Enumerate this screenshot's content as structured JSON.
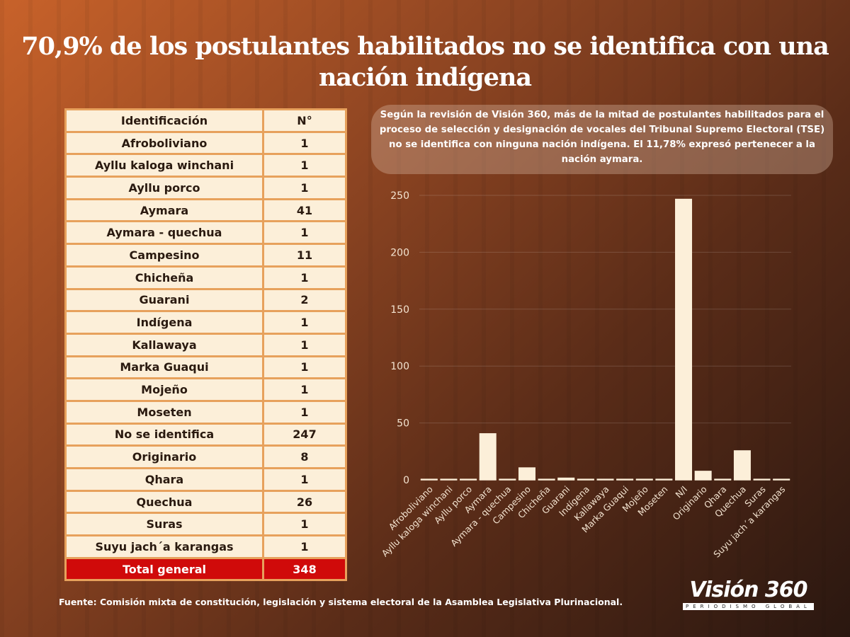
{
  "title": "70,9% de los postulantes habilitados no se identifica con una nación indígena",
  "table": {
    "headers": [
      "Identificación",
      "N°"
    ],
    "rows": [
      [
        "Afroboliviano",
        "1"
      ],
      [
        "Ayllu kaloga winchani",
        "1"
      ],
      [
        "Ayllu porco",
        "1"
      ],
      [
        "Aymara",
        "41"
      ],
      [
        "Aymara - quechua",
        "1"
      ],
      [
        "Campesino",
        "11"
      ],
      [
        "Chicheña",
        "1"
      ],
      [
        "Guarani",
        "2"
      ],
      [
        "Indígena",
        "1"
      ],
      [
        "Kallawaya",
        "1"
      ],
      [
        "Marka Guaqui",
        "1"
      ],
      [
        "Mojeño",
        "1"
      ],
      [
        "Moseten",
        "1"
      ],
      [
        "No se identifica",
        "247"
      ],
      [
        "Originario",
        "8"
      ],
      [
        "Qhara",
        "1"
      ],
      [
        "Quechua",
        "26"
      ],
      [
        "Suras",
        "1"
      ],
      [
        "Suyu jach´a karangas",
        "1"
      ]
    ],
    "total": [
      "Total general",
      "348"
    ]
  },
  "note": "Según la revisión de Visión 360, más de la mitad de postulantes habilitados para el proceso de selección y designación de vocales del Tribunal Supremo Electoral (TSE) no se identifica con ninguna nación indígena. El 11,78% expresó pertenecer a la nación aymara.",
  "source": "Fuente: Comisión mixta de constitución, legislación y sistema electoral de la Asamblea Legislativa Plurinacional.",
  "logo": {
    "name": "Visión 360",
    "tagline": "PERIODISMO GLOBAL"
  },
  "chart_data": {
    "type": "bar",
    "title": "",
    "xlabel": "",
    "ylabel": "",
    "ylim": [
      0,
      250
    ],
    "yticks": [
      0,
      50,
      100,
      150,
      200,
      250
    ],
    "grid": true,
    "categories": [
      "Afroboliviano",
      "Ayllu kaloga winchani",
      "Ayllu porco",
      "Aymara",
      "Aymara - quechua",
      "Campesino",
      "Chicheña",
      "Guarani",
      "Indígena",
      "Kallawaya",
      "Marka Guaqui",
      "Mojeño",
      "Moseten",
      "N/I",
      "Originario",
      "Qhara",
      "Quechua",
      "Suras",
      "Suyu jach´a karangas"
    ],
    "values": [
      1,
      1,
      1,
      41,
      1,
      11,
      1,
      2,
      1,
      1,
      1,
      1,
      1,
      247,
      8,
      1,
      26,
      1,
      1
    ],
    "bar_color": "#fcefd9"
  }
}
